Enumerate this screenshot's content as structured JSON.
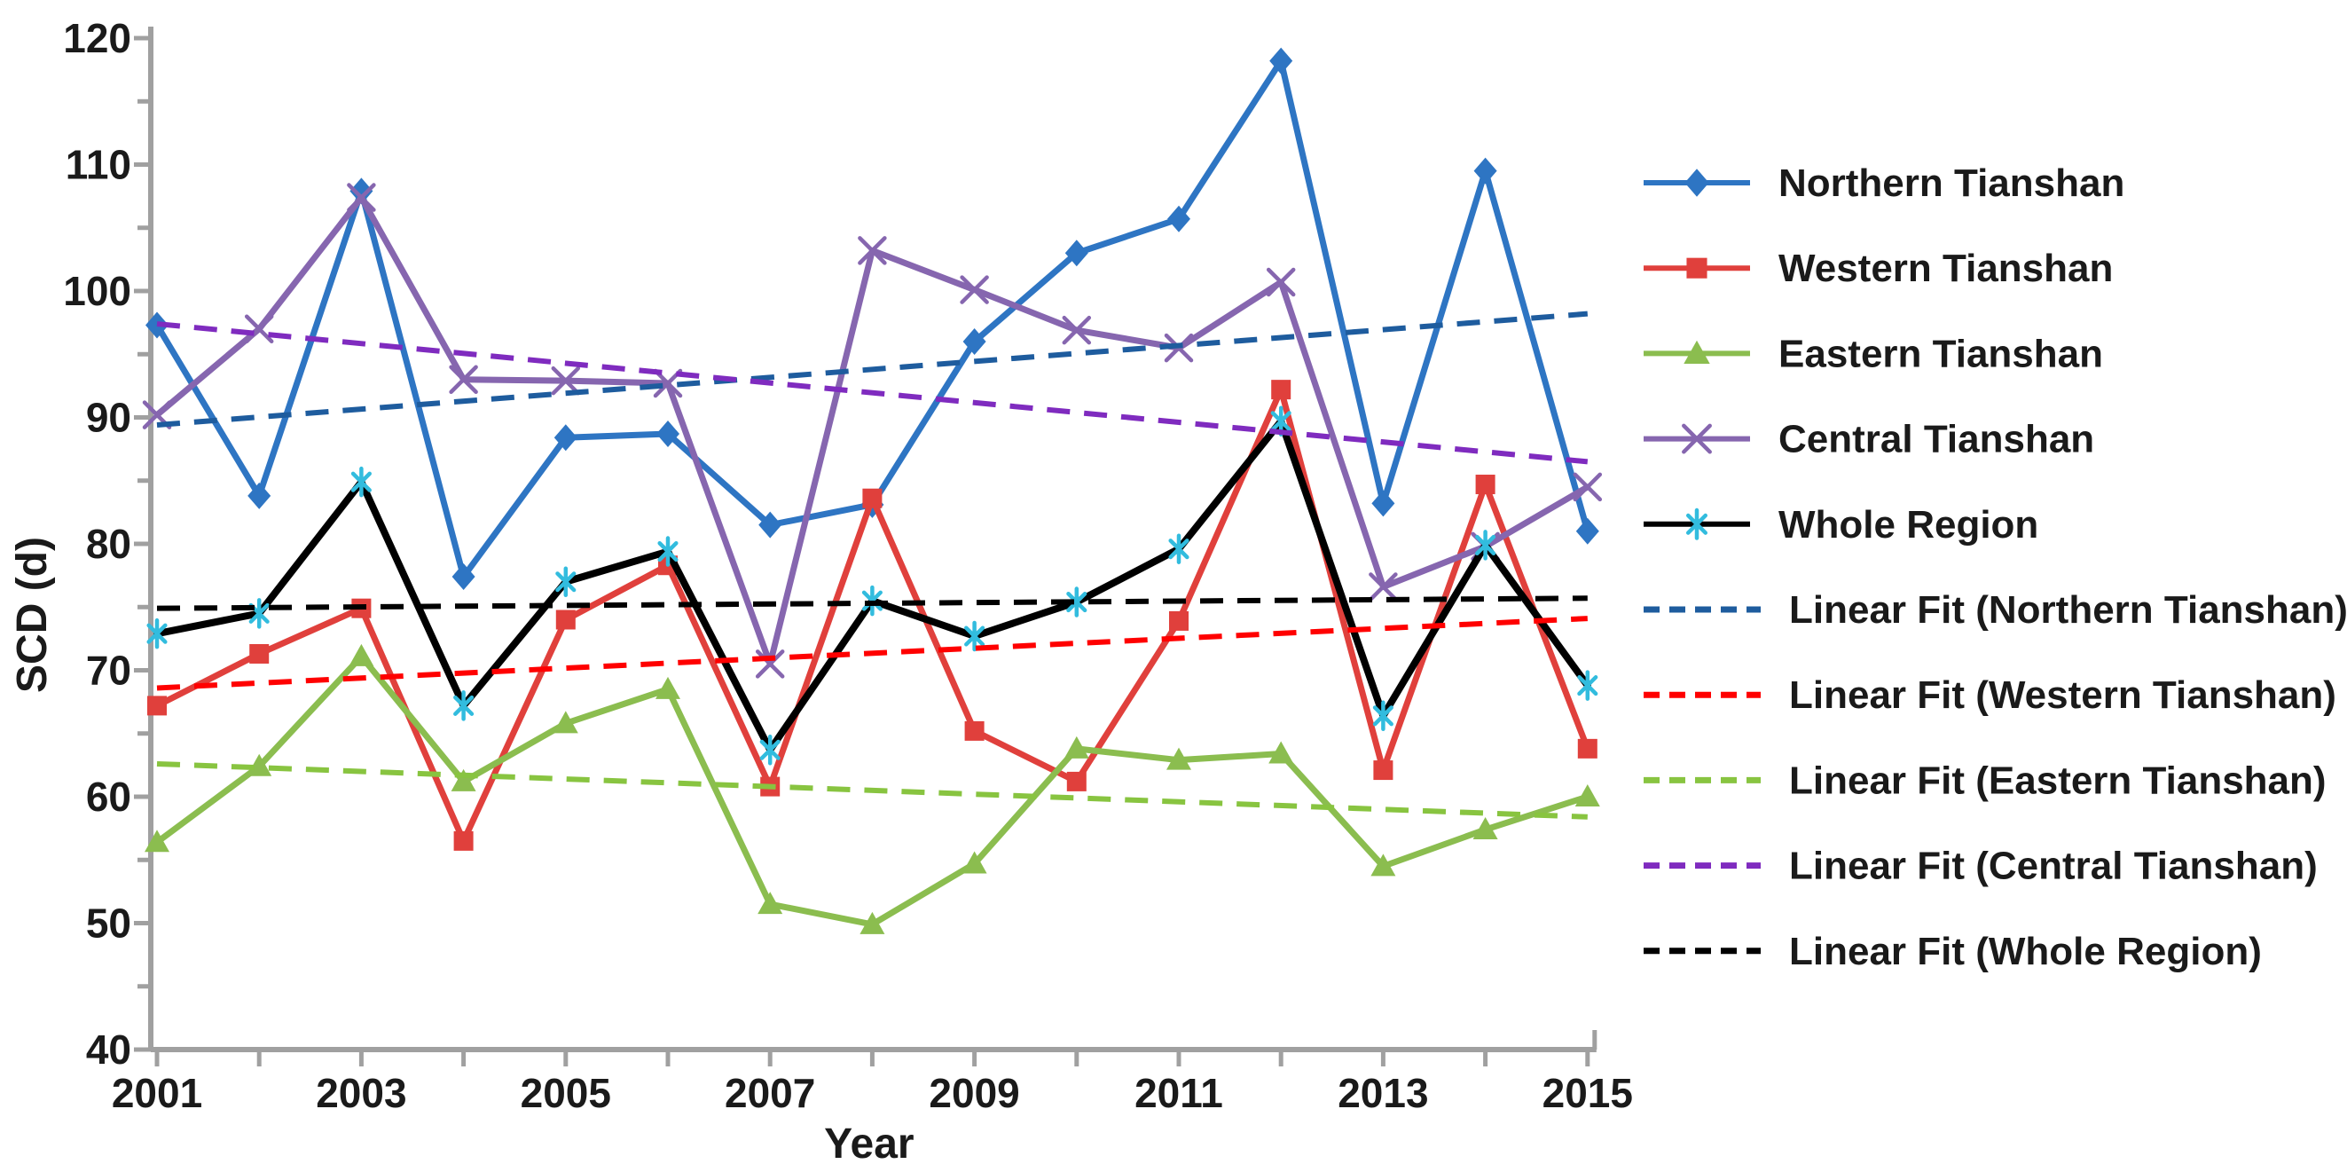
{
  "chart_data": {
    "type": "line",
    "title": "",
    "xlabel": "Year",
    "ylabel": "SCD (d)",
    "x": [
      2001,
      2002,
      2003,
      2004,
      2005,
      2006,
      2007,
      2008,
      2009,
      2010,
      2011,
      2012,
      2013,
      2014,
      2015
    ],
    "x_labeled_ticks": [
      2001,
      2003,
      2005,
      2007,
      2009,
      2011,
      2013,
      2015
    ],
    "xlim": [
      2001,
      2015
    ],
    "ylim": [
      40,
      120
    ],
    "y_major_ticks": [
      40,
      50,
      60,
      70,
      80,
      90,
      100,
      110,
      120
    ],
    "y_minor_step": 5,
    "grid": false,
    "legend_position": "right",
    "axis_color": "#a0a0a0",
    "text_color": "#1a1a1a",
    "series": [
      {
        "name": "Northern Tianshan",
        "type": "data",
        "color": "#2e75c3",
        "marker": "diamond",
        "marker_color": "#2e75c3",
        "values": [
          97.3,
          83.8,
          107.9,
          77.4,
          88.4,
          88.7,
          81.5,
          83.1,
          96.0,
          103.0,
          105.7,
          118.2,
          83.2,
          109.5,
          81.0
        ]
      },
      {
        "name": "Western Tianshan",
        "type": "data",
        "color": "#e0403c",
        "marker": "square",
        "marker_color": "#e0403c",
        "values": [
          67.2,
          71.3,
          74.9,
          56.5,
          74.0,
          78.3,
          60.8,
          83.6,
          65.2,
          61.2,
          73.9,
          92.2,
          62.1,
          84.7,
          63.8
        ]
      },
      {
        "name": "Eastern Tianshan",
        "type": "data",
        "color": "#8bbd4f",
        "marker": "triangle",
        "marker_color": "#8bbd4f",
        "values": [
          56.4,
          62.4,
          71.1,
          61.2,
          65.8,
          68.5,
          51.5,
          49.9,
          54.7,
          63.8,
          62.9,
          63.4,
          54.5,
          57.4,
          60.0
        ]
      },
      {
        "name": "Central Tianshan",
        "type": "data",
        "color": "#8666af",
        "marker": "x",
        "marker_color": "#8666af",
        "values": [
          90.2,
          97.0,
          107.4,
          93.0,
          92.9,
          92.7,
          70.5,
          103.2,
          100.1,
          96.9,
          95.5,
          100.7,
          76.6,
          79.8,
          84.5
        ]
      },
      {
        "name": "Whole Region",
        "type": "data",
        "color": "#000000",
        "marker": "asterisk",
        "marker_color": "#32bcde",
        "values": [
          72.9,
          74.5,
          84.9,
          67.2,
          77.0,
          79.4,
          63.7,
          75.5,
          72.7,
          75.4,
          79.6,
          89.7,
          66.4,
          79.9,
          68.8
        ]
      },
      {
        "name": "Linear Fit (Northern Tianshan)",
        "type": "trend",
        "color": "#1e5c9e",
        "trend_endpoints": [
          89.4,
          98.2
        ]
      },
      {
        "name": "Linear Fit (Western Tianshan)",
        "type": "trend",
        "color": "#ff0000",
        "trend_endpoints": [
          68.6,
          74.1
        ]
      },
      {
        "name": "Linear Fit (Eastern Tianshan)",
        "type": "trend",
        "color": "#88c440",
        "trend_endpoints": [
          62.6,
          58.4
        ]
      },
      {
        "name": "Linear Fit (Central Tianshan)",
        "type": "trend",
        "color": "#7f2bbf",
        "trend_endpoints": [
          97.4,
          86.5
        ]
      },
      {
        "name": "Linear Fit (Whole Region)",
        "type": "trend",
        "color": "#000000",
        "trend_endpoints": [
          74.9,
          75.7
        ]
      }
    ]
  }
}
